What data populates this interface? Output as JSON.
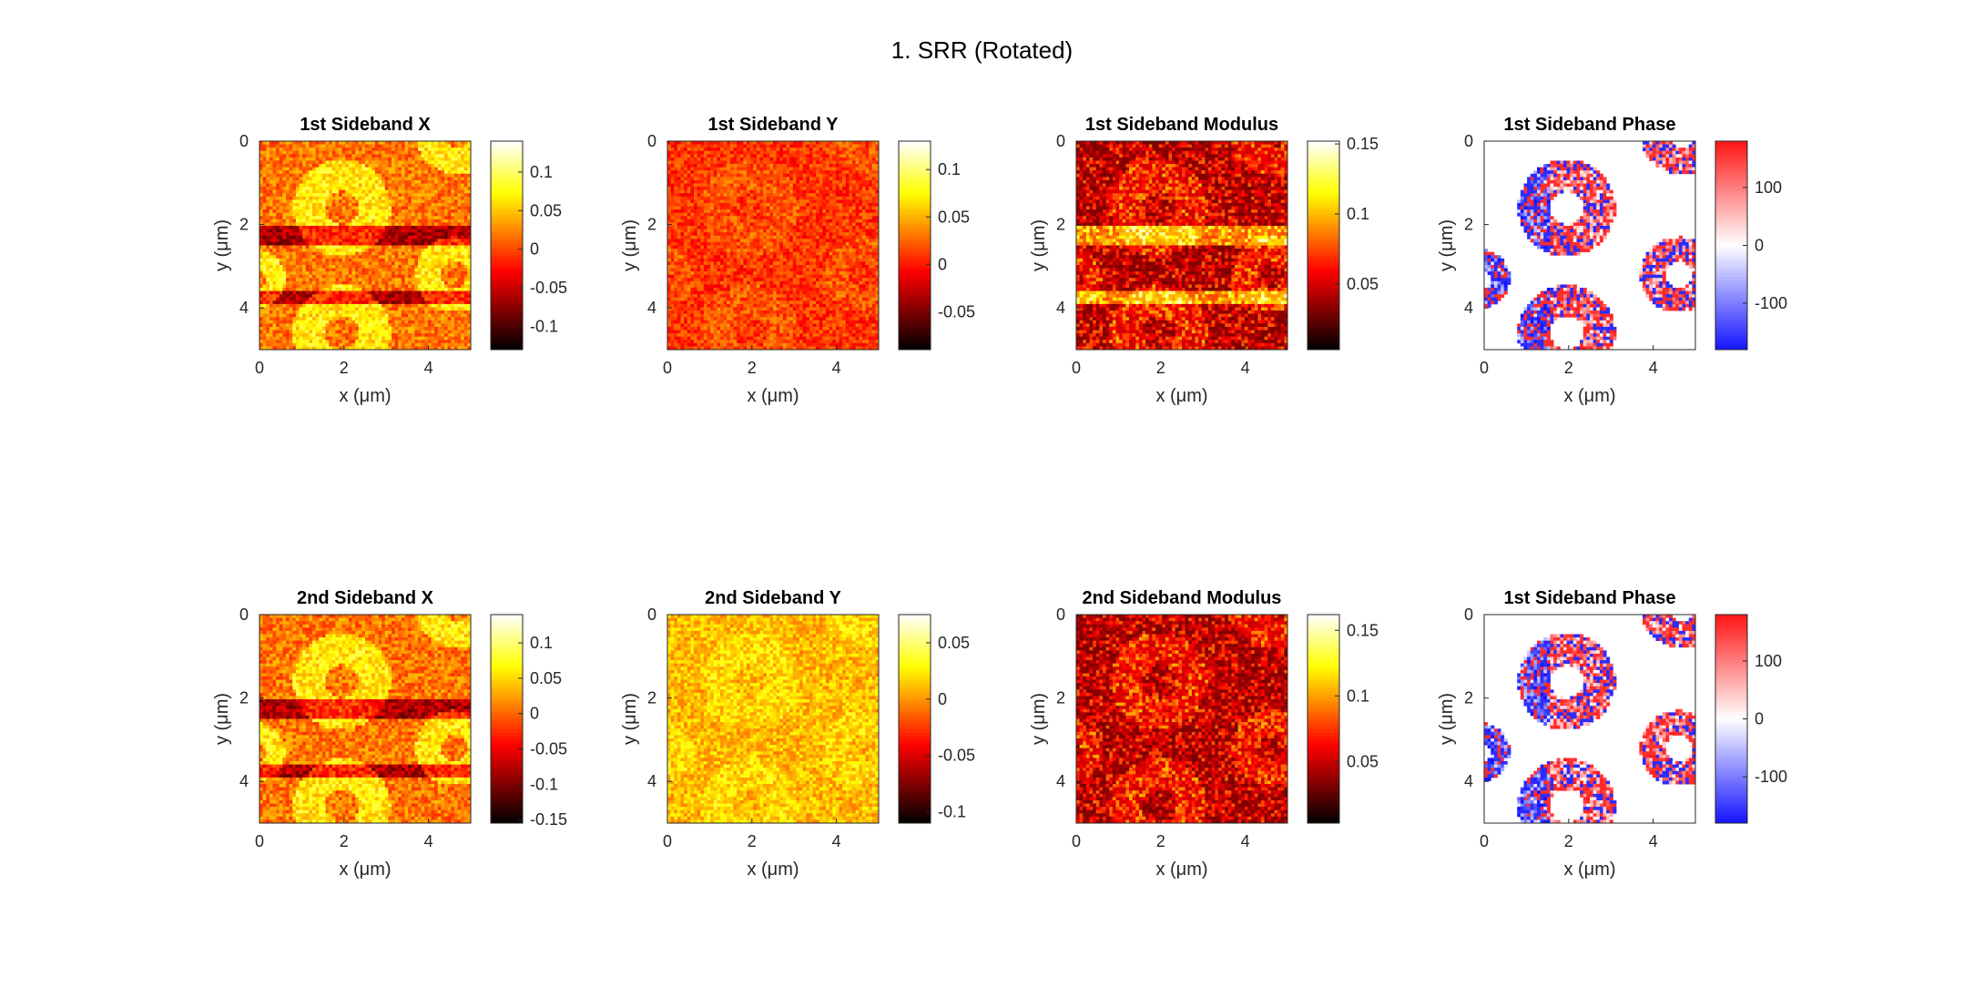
{
  "figure": {
    "title": "1. SRR (Rotated)"
  },
  "chart_data": [
    {
      "type": "heatmap",
      "title": "1st Sideband X",
      "colormap": "hot",
      "xlabel": "x (μm)",
      "ylabel": "y (μm)",
      "xlim": [
        0,
        5
      ],
      "ylim": [
        0,
        5
      ],
      "xticks": [
        0,
        2,
        4
      ],
      "yticks": [
        0,
        2,
        4
      ],
      "y_reversed": true,
      "colorbar": {
        "clim": [
          -0.13,
          0.14
        ],
        "ticks": [
          0.1,
          0.05,
          0,
          -0.05,
          -0.1
        ],
        "tick_labels": [
          "0.1",
          "0.05",
          "0",
          "-0.05",
          "-0.1"
        ]
      }
    },
    {
      "type": "heatmap",
      "title": "1st Sideband Y",
      "colormap": "hot",
      "xlabel": "x (μm)",
      "ylabel": "y (μm)",
      "xlim": [
        0,
        5
      ],
      "ylim": [
        0,
        5
      ],
      "xticks": [
        0,
        2,
        4
      ],
      "yticks": [
        0,
        2,
        4
      ],
      "y_reversed": true,
      "colorbar": {
        "clim": [
          -0.09,
          0.13
        ],
        "ticks": [
          0.1,
          0.05,
          0,
          -0.05
        ],
        "tick_labels": [
          "0.1",
          "0.05",
          "0",
          "-0.05"
        ]
      }
    },
    {
      "type": "heatmap",
      "title": "1st Sideband Modulus",
      "colormap": "hot",
      "xlabel": "x (μm)",
      "ylabel": "y (μm)",
      "xlim": [
        0,
        5
      ],
      "ylim": [
        0,
        5
      ],
      "xticks": [
        0,
        2,
        4
      ],
      "yticks": [
        0,
        2,
        4
      ],
      "y_reversed": true,
      "colorbar": {
        "clim": [
          0.003,
          0.152
        ],
        "ticks": [
          0.15,
          0.1,
          0.05
        ],
        "tick_labels": [
          "0.15",
          "0.1",
          "0.05"
        ]
      }
    },
    {
      "type": "heatmap",
      "title": "1st Sideband Phase",
      "colormap": "blue-white-red",
      "xlabel": "x (μm)",
      "ylabel": "y (μm)",
      "xlim": [
        0,
        5
      ],
      "ylim": [
        0,
        5
      ],
      "xticks": [
        0,
        2,
        4
      ],
      "yticks": [
        0,
        2,
        4
      ],
      "y_reversed": true,
      "colorbar": {
        "clim": [
          -180,
          180
        ],
        "ticks": [
          100,
          0,
          -100
        ],
        "tick_labels": [
          "100",
          "0",
          "-100"
        ]
      }
    },
    {
      "type": "heatmap",
      "title": "2nd Sideband X",
      "colormap": "hot",
      "xlabel": "x (μm)",
      "ylabel": "y (μm)",
      "xlim": [
        0,
        5
      ],
      "ylim": [
        0,
        5
      ],
      "xticks": [
        0,
        2,
        4
      ],
      "yticks": [
        0,
        2,
        4
      ],
      "y_reversed": true,
      "colorbar": {
        "clim": [
          -0.155,
          0.14
        ],
        "ticks": [
          0.1,
          0.05,
          0,
          -0.05,
          -0.1,
          -0.15
        ],
        "tick_labels": [
          "0.1",
          "0.05",
          "0",
          "-0.05",
          "-0.1",
          "-0.15"
        ]
      }
    },
    {
      "type": "heatmap",
      "title": "2nd Sideband Y",
      "colormap": "hot",
      "xlabel": "x (μm)",
      "ylabel": "y (μm)",
      "xlim": [
        0,
        5
      ],
      "ylim": [
        0,
        5
      ],
      "xticks": [
        0,
        2,
        4
      ],
      "yticks": [
        0,
        2,
        4
      ],
      "y_reversed": true,
      "colorbar": {
        "clim": [
          -0.11,
          0.075
        ],
        "ticks": [
          0.05,
          0,
          -0.05,
          -0.1
        ],
        "tick_labels": [
          "0.05",
          "0",
          "-0.05",
          "-0.1"
        ]
      }
    },
    {
      "type": "heatmap",
      "title": "2nd Sideband Modulus",
      "colormap": "hot",
      "xlabel": "x (μm)",
      "ylabel": "y (μm)",
      "xlim": [
        0,
        5
      ],
      "ylim": [
        0,
        5
      ],
      "xticks": [
        0,
        2,
        4
      ],
      "yticks": [
        0,
        2,
        4
      ],
      "y_reversed": true,
      "colorbar": {
        "clim": [
          0.003,
          0.162
        ],
        "ticks": [
          0.15,
          0.1,
          0.05
        ],
        "tick_labels": [
          "0.15",
          "0.1",
          "0.05"
        ]
      }
    },
    {
      "type": "heatmap",
      "title": "1st Sideband Phase",
      "colormap": "blue-white-red",
      "xlabel": "x (μm)",
      "ylabel": "y (μm)",
      "xlim": [
        0,
        5
      ],
      "ylim": [
        0,
        5
      ],
      "xticks": [
        0,
        2,
        4
      ],
      "yticks": [
        0,
        2,
        4
      ],
      "y_reversed": true,
      "colorbar": {
        "clim": [
          -180,
          180
        ],
        "ticks": [
          100,
          0,
          -100
        ],
        "tick_labels": [
          "100",
          "0",
          "-100"
        ]
      }
    }
  ]
}
